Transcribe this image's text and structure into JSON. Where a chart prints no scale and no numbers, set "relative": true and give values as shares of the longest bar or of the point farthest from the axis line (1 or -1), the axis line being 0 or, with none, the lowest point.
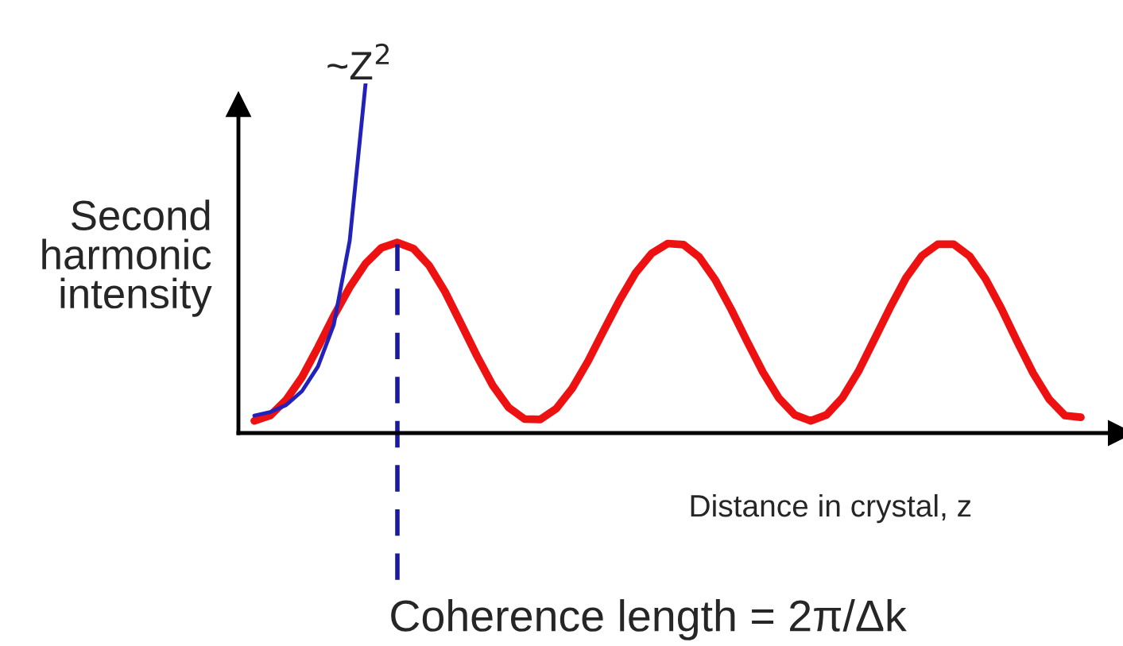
{
  "chart_data": {
    "type": "line",
    "relative": true,
    "xlabel": "Distance in crystal, z",
    "ylabel": "Second\nharmonic\nintensity",
    "categories": [
      null,
      null,
      null,
      null,
      null,
      null,
      null,
      null,
      null,
      null,
      null,
      null,
      null,
      null,
      null,
      null,
      null,
      null,
      null,
      null,
      null,
      null,
      null,
      null,
      null,
      null,
      null,
      null,
      null,
      null,
      null,
      null,
      null,
      null,
      null,
      null,
      null,
      null,
      null,
      null,
      null,
      null,
      null,
      null,
      null,
      null,
      null,
      null,
      null,
      null,
      null,
      null,
      null
    ],
    "series": [
      {
        "color": "#ee1111",
        "values": [
          0.035,
          0.05,
          0.095,
          0.16,
          0.245,
          0.335,
          0.417,
          0.485,
          0.53,
          0.545,
          0.528,
          0.479,
          0.404,
          0.313,
          0.221,
          0.136,
          0.073,
          0.04,
          0.039,
          0.07,
          0.128,
          0.206,
          0.295,
          0.382,
          0.459,
          0.514,
          0.542,
          0.539,
          0.503,
          0.438,
          0.354,
          0.262,
          0.174,
          0.1,
          0.052,
          0.035,
          0.052,
          0.101,
          0.176,
          0.267,
          0.359,
          0.444,
          0.507,
          0.54,
          0.54,
          0.506,
          0.441,
          0.356,
          0.261,
          0.171,
          0.097,
          0.05,
          0.045
        ]
      },
      {
        "color": "#2222bb",
        "values": [
          0.05,
          0.06,
          0.08,
          0.12,
          0.19,
          0.31,
          0.55,
          1.0,
          null,
          null,
          null,
          null,
          null,
          null,
          null,
          null,
          null,
          null,
          null,
          null,
          null,
          null,
          null,
          null,
          null,
          null,
          null,
          null,
          null,
          null,
          null,
          null,
          null,
          null,
          null,
          null,
          null,
          null,
          null,
          null,
          null,
          null,
          null,
          null,
          null,
          null,
          null,
          null,
          null,
          null,
          null,
          null,
          null
        ]
      }
    ],
    "annotations": [
      "~Z$^{2}$",
      "Coherence length = 2π/Δk"
    ],
    "grid": false,
    "legend": false,
    "marker": "none",
    "line_style": "solid"
  }
}
